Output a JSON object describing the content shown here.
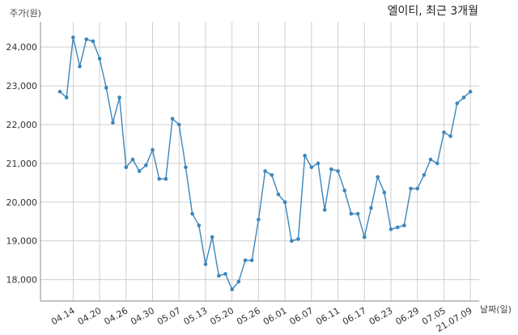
{
  "chart_data": {
    "type": "line",
    "title": "엘이티, 최근 3개월",
    "ylabel": "주가(원)",
    "xlabel": "날짜(일)",
    "ylim": [
      17450,
      24650
    ],
    "yticks": [
      18000,
      19000,
      20000,
      21000,
      22000,
      23000,
      24000
    ],
    "ytick_labels": [
      "18,000",
      "19,000",
      "20,000",
      "21,000",
      "22,000",
      "23,000",
      "24,000"
    ],
    "xtick_labels": [
      "04.14",
      "04.20",
      "04.26",
      "04.30",
      "05.07",
      "05.13",
      "05.20",
      "05.26",
      "06.01",
      "06.07",
      "06.11",
      "06.17",
      "06.23",
      "06.29",
      "07.05",
      "21.07.09"
    ],
    "xtick_positions": [
      2,
      6,
      10,
      14,
      18,
      22,
      26,
      30,
      34,
      38,
      42,
      46,
      50,
      54,
      58,
      62
    ],
    "grid": true,
    "color": "#3b86bd",
    "series": [
      {
        "values": [
          22850,
          22700,
          24250,
          23500,
          24200,
          24150,
          23700,
          22950,
          22050,
          22700,
          20900,
          21100,
          20800,
          20950,
          21350,
          20600,
          20600,
          22150,
          22000,
          20900,
          19700,
          19400,
          18400,
          19100,
          18100,
          18150,
          17750,
          17950,
          18500,
          18500,
          19550,
          20800,
          20700,
          20200,
          20000,
          19000,
          19050,
          21200,
          20900,
          21000,
          19800,
          20850,
          20800,
          20300,
          19700,
          19700,
          19100,
          19850,
          20650,
          20250,
          19300,
          19350,
          19400,
          20350,
          20350,
          20700,
          21100,
          21000,
          21800,
          21700,
          22550,
          22700,
          22850
        ]
      }
    ]
  }
}
